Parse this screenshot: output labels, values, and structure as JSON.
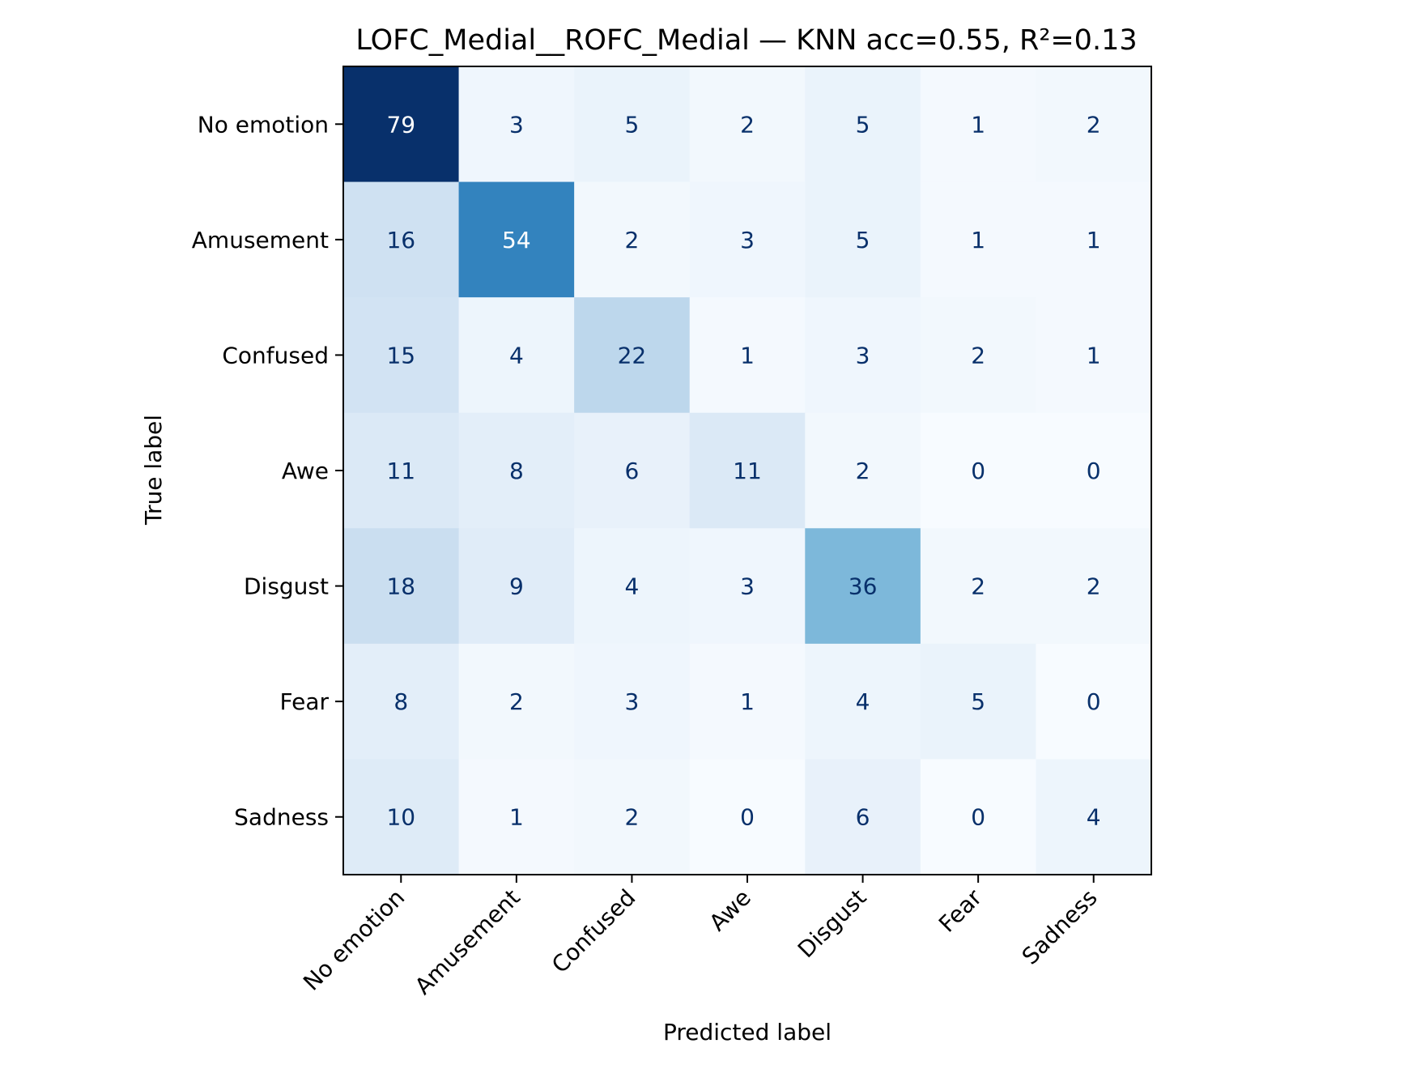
{
  "chart_data": {
    "type": "heatmap",
    "title": "LOFC_Medial__ROFC_Medial — KNN acc=0.55, R²=0.13",
    "xlabel": "Predicted label",
    "ylabel": "True label",
    "x_categories": [
      "No emotion",
      "Amusement",
      "Confused",
      "Awe",
      "Disgust",
      "Fear",
      "Sadness"
    ],
    "y_categories": [
      "No emotion",
      "Amusement",
      "Confused",
      "Awe",
      "Disgust",
      "Fear",
      "Sadness"
    ],
    "values": [
      [
        79,
        3,
        5,
        2,
        5,
        1,
        2
      ],
      [
        16,
        54,
        2,
        3,
        5,
        1,
        1
      ],
      [
        15,
        4,
        22,
        1,
        3,
        2,
        1
      ],
      [
        11,
        8,
        6,
        11,
        2,
        0,
        0
      ],
      [
        18,
        9,
        4,
        3,
        36,
        2,
        2
      ],
      [
        8,
        2,
        3,
        1,
        4,
        5,
        0
      ],
      [
        10,
        1,
        2,
        0,
        6,
        0,
        4
      ]
    ],
    "value_range": [
      0,
      79
    ],
    "colormap": "Blues",
    "colormap_stops": [
      "#f7fbff",
      "#deebf7",
      "#c6dbef",
      "#9ecae1",
      "#6baed6",
      "#4292c6",
      "#2171b5",
      "#08519c",
      "#08306b"
    ],
    "text_color_dark": "#08306b",
    "text_color_light": "#ffffff",
    "grid": false,
    "legend": "none"
  }
}
